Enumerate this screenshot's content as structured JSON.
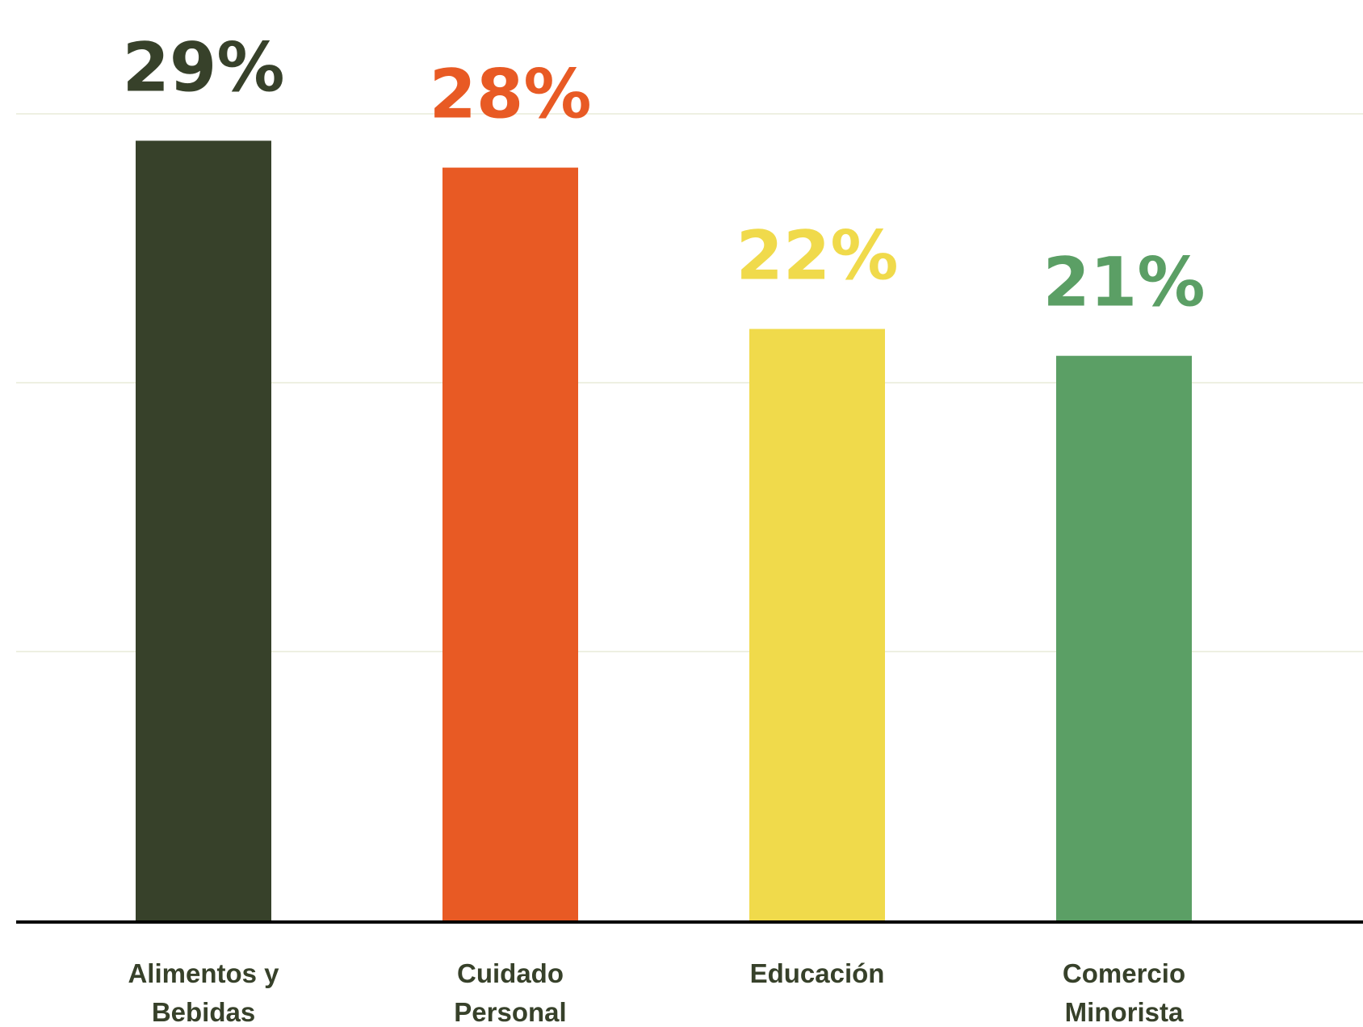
{
  "chart_data": {
    "type": "bar",
    "categories": [
      [
        "Alimentos y",
        "Bebidas"
      ],
      [
        "Cuidado",
        "Personal"
      ],
      [
        "Educación"
      ],
      [
        "Comercio",
        "Minorista"
      ]
    ],
    "values": [
      29,
      28,
      22,
      21
    ],
    "value_labels": [
      "29%",
      "28%",
      "22%",
      "21%"
    ],
    "colors": [
      "#37412a",
      "#e85a24",
      "#f0da4b",
      "#5b9f65"
    ],
    "ylim": [
      0,
      30
    ],
    "gridlines": [
      10,
      20,
      30
    ],
    "grid": true,
    "grid_color": "#eef0e2",
    "axis_color": "#000000",
    "title": "",
    "xlabel": "",
    "ylabel": ""
  }
}
